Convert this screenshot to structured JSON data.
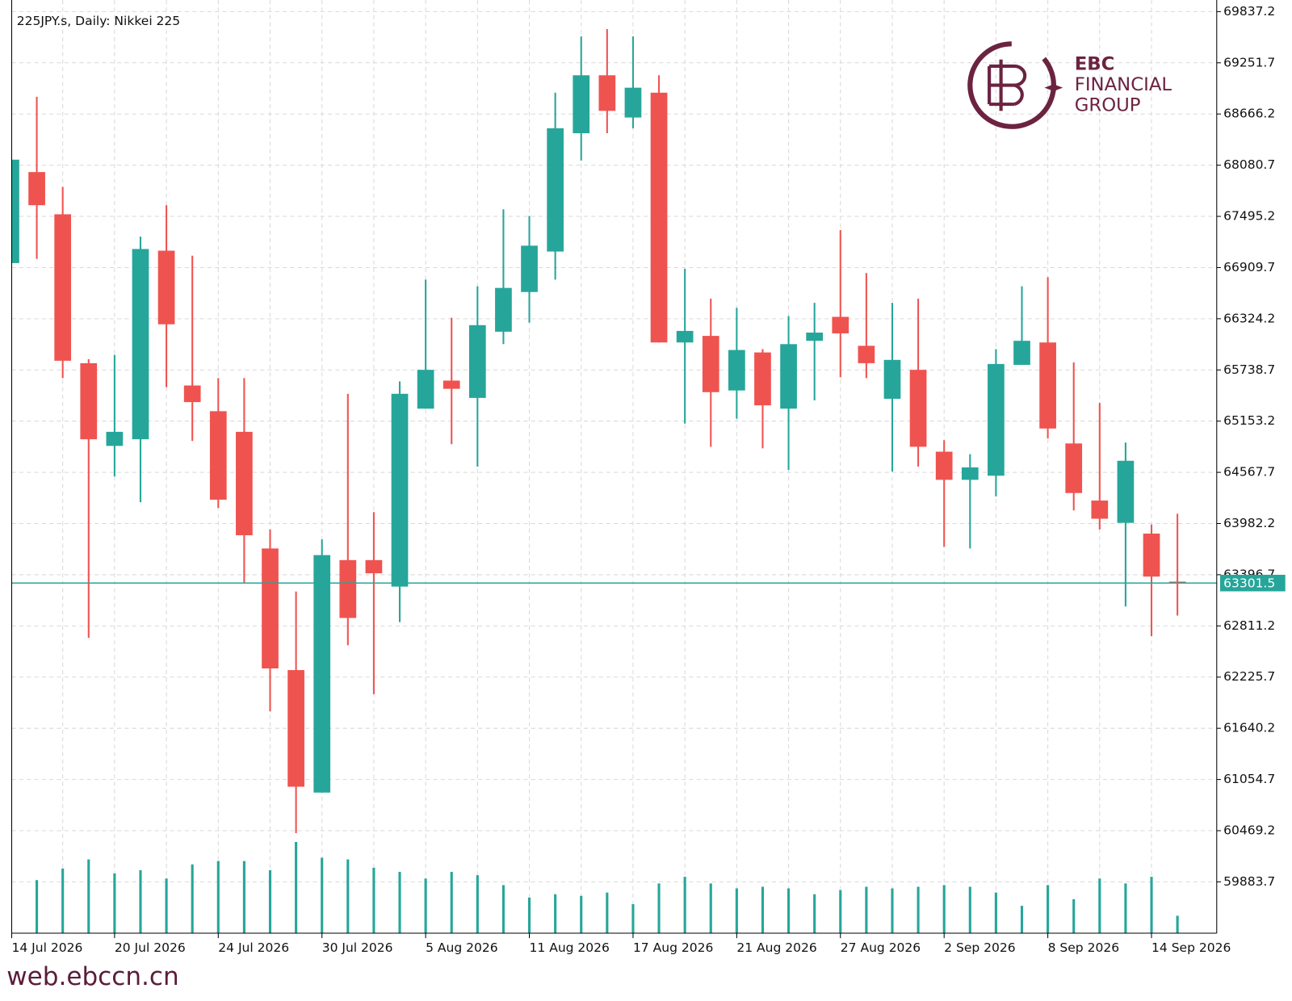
{
  "chart_data": {
    "type": "candlestick",
    "title": "225JPY.s, Daily:  Nikkei 225",
    "categories": [
      "14 Jul 2026",
      null,
      null,
      null,
      "20 Jul 2026",
      null,
      null,
      null,
      "24 Jul 2026",
      null,
      null,
      null,
      "30 Jul 2026",
      null,
      null,
      null,
      "5 Aug 2026",
      null,
      null,
      null,
      "11 Aug 2026",
      null,
      null,
      null,
      "17 Aug 2026",
      null,
      null,
      null,
      "21 Aug 2026",
      null,
      null,
      null,
      "27 Aug 2026",
      null,
      null,
      null,
      "2 Sep 2026",
      null,
      null,
      null,
      "8 Sep 2026",
      null,
      null,
      null,
      "14 Sep 2026",
      null
    ],
    "open": [
      66961,
      68002,
      67519,
      65816,
      64870,
      64946,
      67103,
      65561,
      65267,
      65031,
      63697,
      62306,
      60905,
      63564,
      63564,
      63261,
      65296,
      65617,
      65419,
      66176,
      66630,
      67093,
      68446,
      69109,
      68626,
      68910,
      66053,
      66128,
      65504,
      65939,
      65296,
      66072,
      66346,
      66015,
      65409,
      65740,
      64804,
      64482,
      64529,
      65797,
      66053,
      64898,
      64245,
      63990,
      63867,
      63318
    ],
    "high": [
      68144,
      68863,
      67831,
      65863,
      65911,
      67264,
      67623,
      67046,
      65646,
      65646,
      63914,
      63205,
      63801,
      65466,
      64113,
      65608,
      66772,
      66336,
      66696,
      67576,
      67500,
      68910,
      69553,
      69638,
      69553,
      69109,
      66895,
      66554,
      66450,
      65977,
      66355,
      66507,
      67339,
      66847,
      66507,
      66554,
      64936,
      64775,
      65977,
      66696,
      66800,
      65826,
      65362,
      64908,
      63971,
      64094
    ],
    "low": [
      66961,
      67008,
      65646,
      62675,
      64520,
      64226,
      65542,
      64927,
      64160,
      63299,
      61833,
      60442,
      60905,
      62590,
      62031,
      62855,
      65296,
      64889,
      64633,
      66034,
      66280,
      66772,
      68134,
      68446,
      68503,
      66053,
      65125,
      64860,
      65182,
      64842,
      64595,
      65390,
      65655,
      65646,
      64577,
      64633,
      63716,
      63697,
      64293,
      65797,
      64955,
      64132,
      63914,
      63034,
      62694,
      62930
    ],
    "close": [
      68144,
      67623,
      65844,
      64946,
      65031,
      67122,
      66261,
      65371,
      64255,
      63848,
      62325,
      60972,
      63621,
      62902,
      63413,
      65466,
      65740,
      65523,
      66251,
      66677,
      67160,
      68503,
      69109,
      68702,
      68967,
      66053,
      66185,
      65485,
      65967,
      65334,
      66034,
      66166,
      66157,
      65816,
      65854,
      64860,
      64482,
      64624,
      65807,
      66072,
      65069,
      64331,
      64037,
      64700,
      63375,
      63301.5
    ],
    "volume": [
      null,
      64,
      78,
      89,
      72,
      76,
      66,
      83,
      87,
      87,
      76,
      110,
      91,
      89,
      79,
      74,
      66,
      74,
      70,
      58,
      43,
      47,
      45,
      49,
      35,
      60,
      68,
      60,
      54,
      56,
      54,
      47,
      52,
      56,
      54,
      56,
      58,
      56,
      49,
      33,
      58,
      41,
      66,
      60,
      68,
      21
    ],
    "volume_lim": [
      0,
      1126
    ],
    "up_color": "#26a69a",
    "down_color": "#ef5350",
    "ylim": [
      59297,
      69970
    ],
    "yticks": [
      69837.2,
      69251.7,
      68666.2,
      68080.7,
      67495.2,
      66909.7,
      66324.2,
      65738.7,
      65153.2,
      64567.7,
      63982.2,
      63396.7,
      62811.2,
      62225.7,
      61640.2,
      61054.7,
      60469.2,
      59883.7
    ],
    "last_price": 63301.5,
    "grid": true
  },
  "logo": {
    "line1": "EBC",
    "line2": "FINANCIAL",
    "line3": "GROUP"
  },
  "watermark": "web.ebccn.cn"
}
